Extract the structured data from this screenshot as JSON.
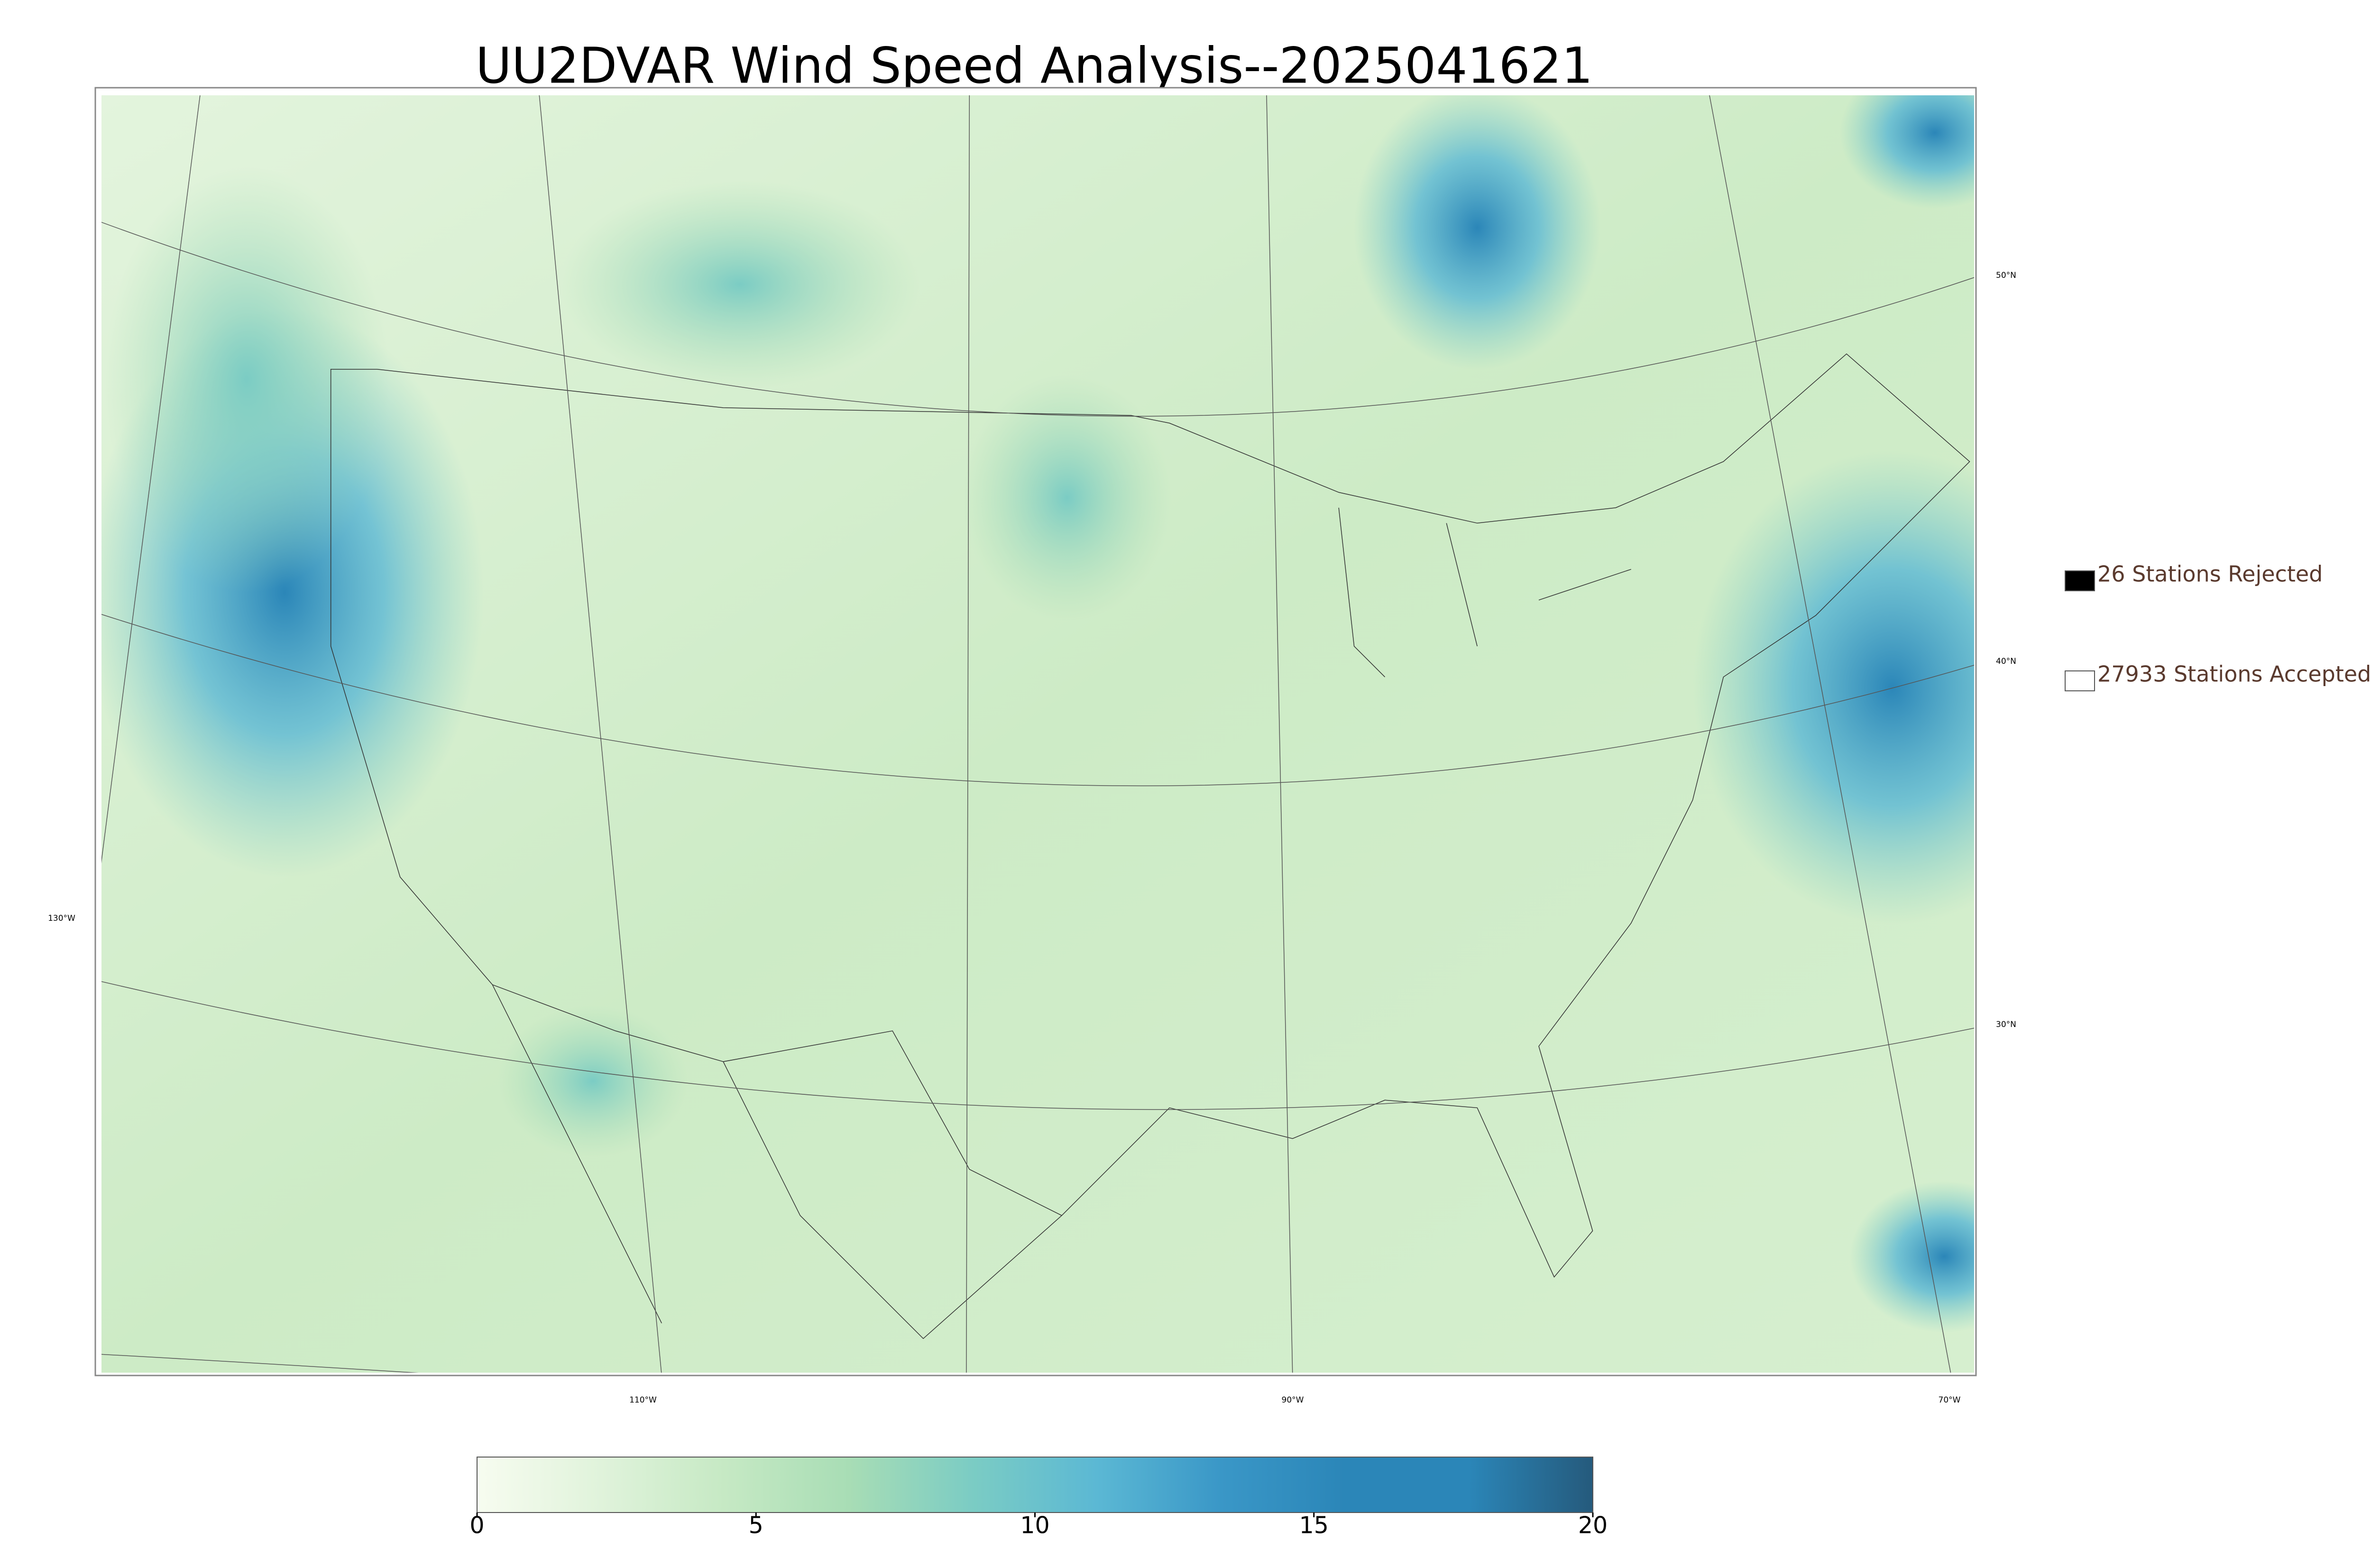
{
  "title": "UU2DVAR Wind Speed Analysis--2025041621",
  "map": {
    "lat_labels": [
      "50°N",
      "40°N",
      "30°N"
    ],
    "lon_labels": [
      "130°W",
      "110°W",
      "90°W",
      "70°W"
    ]
  },
  "legend": {
    "items": [
      {
        "label": "26 Stations Rejected",
        "color": "#000000"
      },
      {
        "label": "27933 Stations Accepted",
        "color": "#ffffff"
      }
    ]
  },
  "colorbar": {
    "lim": [
      0,
      20
    ],
    "ticks": [
      0,
      5,
      10,
      15,
      20
    ],
    "colors": [
      "#f7fcf0",
      "#e0f3db",
      "#c6e9c4",
      "#a8ddb5",
      "#7bccc4",
      "#5bb8d4",
      "#3a97c7",
      "#2b86b8",
      "#2b86b8",
      "#255a7c"
    ]
  }
}
